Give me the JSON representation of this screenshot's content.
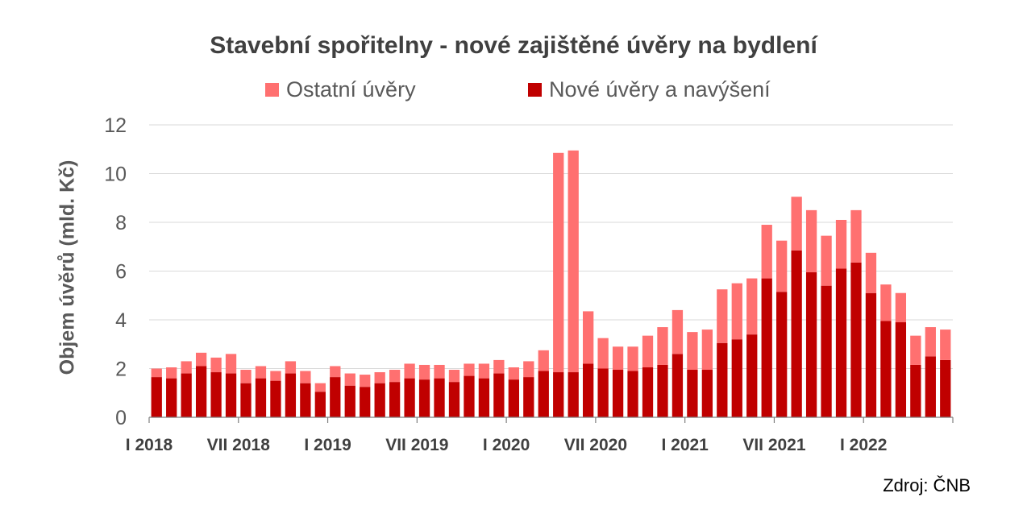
{
  "chart_data": {
    "type": "bar",
    "stacked": true,
    "title": "Stavební spořitelny - nové zajištěné úvěry na bydlení",
    "ylabel": "Objem úvěrů (mld. Kč)",
    "source": "Zdroj: ČNB",
    "ylim": [
      0,
      12
    ],
    "yticks": [
      0,
      2,
      4,
      6,
      8,
      10,
      12
    ],
    "legend_position": "top",
    "xtick_labels": [
      {
        "index": 0,
        "label": "I 2018"
      },
      {
        "index": 6,
        "label": "VII 2018"
      },
      {
        "index": 12,
        "label": "I 2019"
      },
      {
        "index": 18,
        "label": "VII 2019"
      },
      {
        "index": 24,
        "label": "I 2020"
      },
      {
        "index": 30,
        "label": "VII 2020"
      },
      {
        "index": 36,
        "label": "I 2021"
      },
      {
        "index": 42,
        "label": "VII 2021"
      },
      {
        "index": 48,
        "label": "I 2022"
      }
    ],
    "series": [
      {
        "name": "Nové úvěry a navýšení",
        "color": "#C00000",
        "values": [
          1.65,
          1.6,
          1.8,
          2.1,
          1.85,
          1.8,
          1.4,
          1.6,
          1.5,
          1.8,
          1.4,
          1.05,
          1.65,
          1.3,
          1.25,
          1.4,
          1.45,
          1.6,
          1.55,
          1.6,
          1.45,
          1.7,
          1.6,
          1.8,
          1.55,
          1.65,
          1.9,
          1.85,
          1.85,
          2.2,
          2.0,
          1.95,
          1.9,
          2.05,
          2.15,
          2.6,
          1.95,
          1.95,
          3.05,
          3.2,
          3.4,
          5.7,
          5.15,
          6.85,
          5.95,
          5.4,
          6.1,
          6.35,
          5.1,
          3.95,
          3.9,
          2.15,
          2.5,
          2.35
        ]
      },
      {
        "name": "Ostatní úvěry",
        "color": "#FF7070",
        "values": [
          0.35,
          0.45,
          0.5,
          0.55,
          0.6,
          0.8,
          0.55,
          0.5,
          0.4,
          0.5,
          0.5,
          0.35,
          0.45,
          0.5,
          0.5,
          0.45,
          0.5,
          0.6,
          0.6,
          0.55,
          0.5,
          0.5,
          0.6,
          0.55,
          0.5,
          0.65,
          0.85,
          9.0,
          9.1,
          2.15,
          1.25,
          0.95,
          1.0,
          1.3,
          1.55,
          1.8,
          1.55,
          1.65,
          2.2,
          2.3,
          2.3,
          2.2,
          2.1,
          2.2,
          2.55,
          2.05,
          2.0,
          2.15,
          1.65,
          1.5,
          1.2,
          1.2,
          1.2,
          1.25
        ]
      }
    ]
  },
  "legend": {
    "other_label": "Ostatní úvěry",
    "new_label": "Nové úvěry a navýšení"
  }
}
